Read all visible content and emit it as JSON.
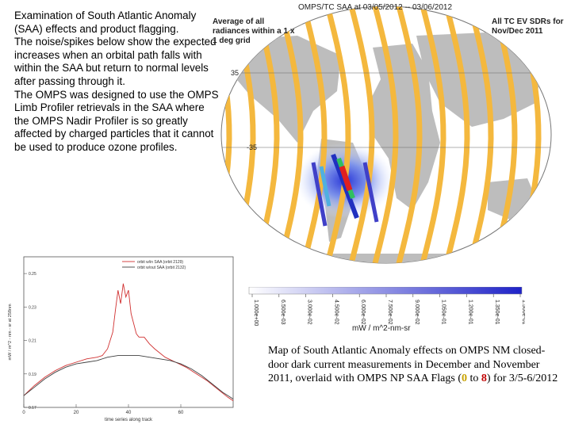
{
  "intro": {
    "p1": "Examination of South Atlantic Anomaly (SAA) effects and product flagging.",
    "p2": "The noise/spikes below show the expected increases when an orbital path falls with within the SAA but return to normal levels after passing through it.",
    "p3": "The OMPS was designed to use the OMPS Limb Profiler retrievals in the SAA where the OMPS Nadir Profiler is so greatly affected by charged particles that it cannot be used to produce ozone profiles."
  },
  "map": {
    "title": "OMPS/TC SAA at 03/05/2012 -- 03/06/2012",
    "note_left": "Average of all radiances within a 1 x 1 deg grid",
    "note_right": "All TC EV SDRs for Nov/Dec 2011",
    "lat_labels": [
      "35",
      "-35"
    ],
    "colors": {
      "ocean": "#ffffff",
      "land": "#b9b9b9",
      "track": "#f4b83e",
      "saa_core": "#e02020"
    }
  },
  "colorbar": {
    "unit": "mW / m^2-nm-sr",
    "ticks": [
      "1.000e+00",
      "6.500e-03",
      "3.000e-02",
      "4.500e-02",
      "6.000e-02",
      "7.500e-02",
      "9.000e-02",
      "1.050e-01",
      "1.200e-01",
      "1.350e-01",
      "1.500e-01"
    ],
    "colors": [
      "#ffffff",
      "#1e22c8"
    ]
  },
  "chart_data": {
    "type": "line",
    "title": "",
    "xlabel": "time series along track",
    "ylabel": "mW / m^2 - nm - sr at 258nm",
    "xlim": [
      0,
      80
    ],
    "ylim": [
      0.17,
      0.26
    ],
    "xticks": [
      "0",
      "20",
      "40",
      "60"
    ],
    "yticks": [
      "0.17",
      "0.19",
      "0.21",
      "0.23",
      "0.25"
    ],
    "legend": "top-right",
    "series": [
      {
        "name": "orbit w/in SAA (orbit 2129)",
        "color": "#d03030",
        "x": [
          0,
          4,
          8,
          12,
          16,
          20,
          24,
          28,
          30,
          32,
          34,
          35,
          36,
          37,
          38,
          39,
          40,
          41,
          42,
          43,
          44,
          46,
          48,
          50,
          54,
          58,
          62,
          66,
          70,
          74,
          78,
          80
        ],
        "y": [
          0.177,
          0.183,
          0.188,
          0.192,
          0.195,
          0.197,
          0.199,
          0.2,
          0.201,
          0.205,
          0.215,
          0.228,
          0.24,
          0.232,
          0.244,
          0.236,
          0.24,
          0.226,
          0.22,
          0.214,
          0.212,
          0.212,
          0.208,
          0.205,
          0.2,
          0.197,
          0.194,
          0.19,
          0.186,
          0.181,
          0.176,
          0.174
        ]
      },
      {
        "name": "orbit w/out SAA (orbit 2132)",
        "color": "#404040",
        "x": [
          0,
          4,
          8,
          12,
          16,
          20,
          24,
          28,
          32,
          36,
          40,
          44,
          48,
          52,
          56,
          60,
          64,
          68,
          72,
          76,
          80
        ],
        "y": [
          0.177,
          0.182,
          0.187,
          0.191,
          0.194,
          0.196,
          0.197,
          0.198,
          0.2,
          0.201,
          0.201,
          0.201,
          0.2,
          0.199,
          0.198,
          0.196,
          0.193,
          0.189,
          0.184,
          0.179,
          0.175
        ]
      }
    ]
  },
  "caption": {
    "text1": "Map of South Atlantic Anomaly effects on OMPS NM closed-door dark current measurements in December and November 2011, overlaid with OMPS NP SAA Flags (",
    "flag0": "0",
    "text2": " to ",
    "flag8": "8",
    "text3": ") for 3/5-6/2012"
  }
}
